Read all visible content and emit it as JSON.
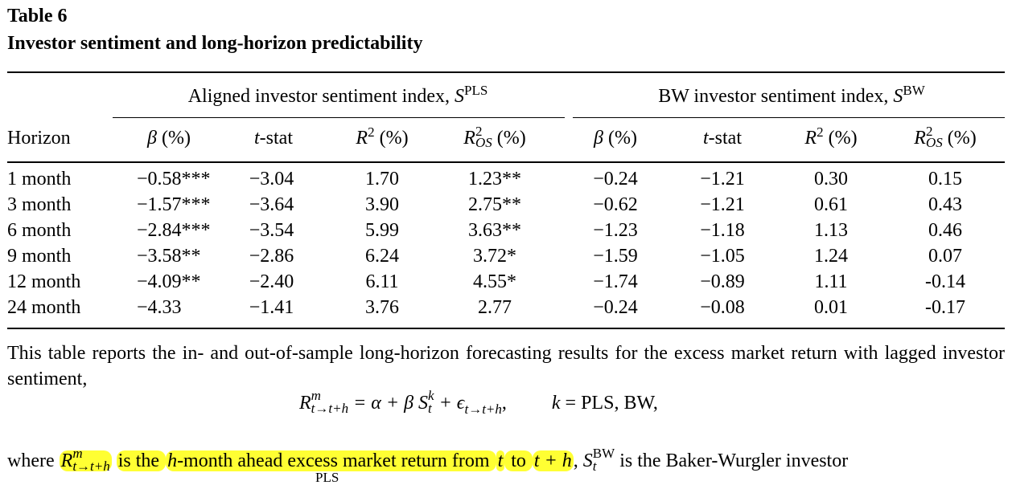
{
  "caption": {
    "number": "Table 6",
    "title": "Investor sentiment and long-horizon predictability"
  },
  "table": {
    "group_left": "Aligned investor sentiment index, ",
    "group_left_symbol": "S",
    "group_left_sup": "PLS",
    "group_right": "BW investor sentiment index, ",
    "group_right_symbol": "S",
    "group_right_sup": "BW",
    "stub_header": "Horizon",
    "col_beta": "β",
    "col_pct": "(%)",
    "col_t": "t",
    "col_tstat": "-stat",
    "col_r": "R",
    "col_r2_sup": "2",
    "col_ros_sub": "OS",
    "rows": [
      {
        "h": "1 month",
        "b1": "−0.58***",
        "t1": "−3.04",
        "r1": "1.70",
        "o1": "1.23**",
        "b2": "−0.24",
        "t2": "−1.21",
        "r2": "0.30",
        "o2": "0.15"
      },
      {
        "h": "3 month",
        "b1": "−1.57***",
        "t1": "−3.64",
        "r1": "3.90",
        "o1": "2.75**",
        "b2": "−0.62",
        "t2": "−1.21",
        "r2": "0.61",
        "o2": "0.43"
      },
      {
        "h": "6 month",
        "b1": "−2.84***",
        "t1": "−3.54",
        "r1": "5.99",
        "o1": "3.63**",
        "b2": "−1.23",
        "t2": "−1.18",
        "r2": "1.13",
        "o2": "0.46"
      },
      {
        "h": "9 month",
        "b1": "−3.58**",
        "t1": "−2.86",
        "r1": "6.24",
        "o1": "3.72*",
        "b2": "−1.59",
        "t2": "−1.05",
        "r2": "1.24",
        "o2": "0.07"
      },
      {
        "h": "12 month",
        "b1": "−4.09**",
        "t1": "−2.40",
        "r1": "6.11",
        "o1": "4.55*",
        "b2": "−1.74",
        "t2": "−0.89",
        "r2": "1.11",
        "o2": "-0.14"
      },
      {
        "h": "24 month",
        "b1": "−4.33",
        "t1": "−1.41",
        "r1": "3.76",
        "o1": "2.77",
        "b2": "−0.24",
        "t2": "−0.08",
        "r2": "0.01",
        "o2": "-0.17"
      }
    ]
  },
  "note": {
    "para1": "This table reports the in- and out-of-sample long-horizon forecasting results for the excess market return with lagged investor sentiment,",
    "eq_R": "R",
    "eq_R_sup": "m",
    "eq_R_sub": "t→t+h",
    "eq_mid": " = α + β S",
    "eq_S_sup": "k",
    "eq_S_sub": "t",
    "eq_eps": " + ϵ",
    "eq_eps_sub": "t→t+h",
    "eq_comma": ",",
    "eq_k": "k",
    "eq_k_rest": " = PLS, BW,",
    "para2_where": "where ",
    "para2_R": "R",
    "para2_R_sup": "m",
    "para2_R_sub": "t→t+h",
    "para2_is": " is the ",
    "para2_h": "h",
    "para2_month": "-month ahead excess market return from ",
    "para2_t": "t",
    "para2_to": " to ",
    "para2_th": "t + h",
    "para2_comma": ", ",
    "para2_S": "S",
    "para2_S_sup": "BW",
    "para2_S_sub": "t",
    "para2_tail": " is the Baker-Wurgler investor",
    "para3_sup": "PLS"
  },
  "colors": {
    "text": "#000000",
    "highlight": "#ffff33"
  }
}
